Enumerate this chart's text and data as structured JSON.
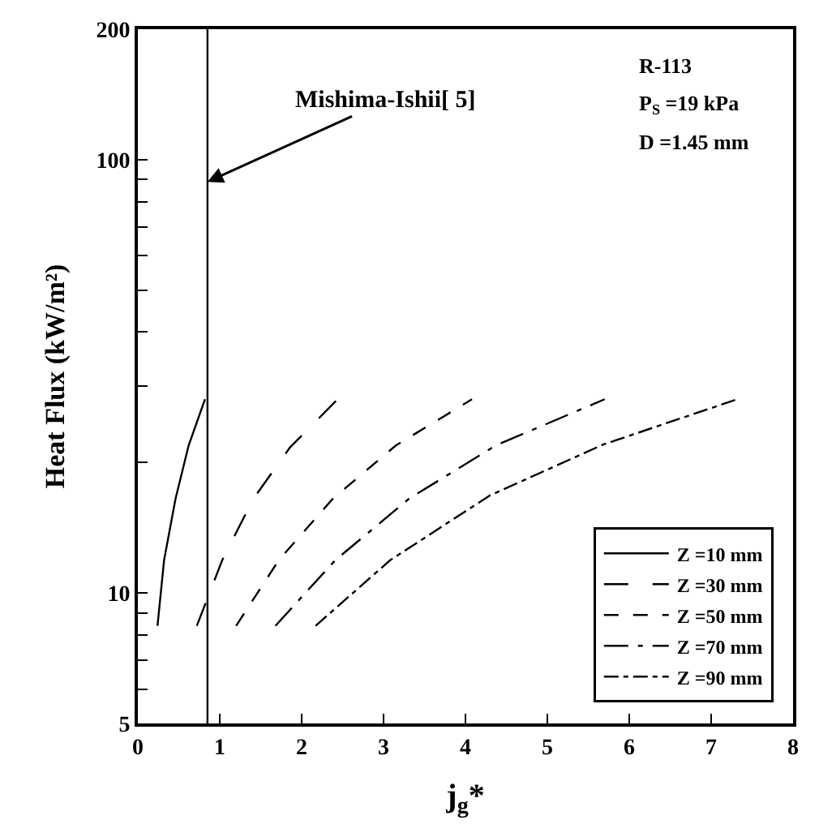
{
  "chart_data": {
    "type": "line",
    "xlabel": "j$_{g}$*",
    "ylabel": "Heat Flux (kW/m²)",
    "series": [
      {
        "name": "Z =10 mm",
        "color": "#000000",
        "line_style": "solid",
        "x": [
          0.24,
          0.32,
          0.46,
          0.62,
          0.82
        ],
        "values": [
          8.4,
          11.9,
          16.5,
          21.9,
          28
        ]
      },
      {
        "name": "Z =30 mm",
        "color": "#000000",
        "line_style": "longdash",
        "x": [
          0.72,
          1.03,
          1.41,
          1.86,
          2.44
        ],
        "values": [
          8.4,
          11.9,
          16.5,
          21.7,
          28
        ]
      },
      {
        "name": "Z =50 mm",
        "color": "#000000",
        "line_style": "dashed",
        "x": [
          1.2,
          1.72,
          2.38,
          3.15,
          4.08
        ],
        "values": [
          8.4,
          11.9,
          16.5,
          21.9,
          28
        ]
      },
      {
        "name": "Z =70 mm",
        "color": "#000000",
        "line_style": "longdashdot",
        "x": [
          1.68,
          2.41,
          3.31,
          4.37,
          5.7
        ],
        "values": [
          8.4,
          11.9,
          16.5,
          21.9,
          28
        ]
      },
      {
        "name": "Z =90 mm",
        "color": "#000000",
        "line_style": "dashdot",
        "x": [
          2.17,
          3.08,
          4.3,
          5.68,
          7.32
        ],
        "values": [
          8.4,
          11.9,
          16.8,
          22,
          28
        ]
      }
    ],
    "ref_lines": [
      {
        "axis": "x",
        "value": 0.85,
        "label": "Mishima-Ishii[ 5]",
        "color": "#000000"
      }
    ],
    "annotations": [
      "R-113",
      "P$_{S}$ =19 kPa",
      "D =1.45 mm"
    ],
    "xlim": [
      0,
      8
    ],
    "xticks": [
      0,
      1,
      2,
      3,
      4,
      5,
      6,
      7,
      8
    ],
    "ylim": [
      5,
      200
    ],
    "log": "y",
    "yticks": [
      5,
      {
        "value": 6,
        "label": null
      },
      {
        "value": 7,
        "label": null
      },
      {
        "value": 8,
        "label": null
      },
      {
        "value": 9,
        "label": null
      },
      10,
      {
        "value": 20,
        "label": null
      },
      {
        "value": 30,
        "label": null
      },
      {
        "value": 40,
        "label": null
      },
      {
        "value": 50,
        "label": null
      },
      {
        "value": 60,
        "label": null
      },
      {
        "value": 70,
        "label": null
      },
      {
        "value": 80,
        "label": null
      },
      {
        "value": 90,
        "label": null
      },
      100,
      200
    ],
    "legend": "bottom right"
  }
}
